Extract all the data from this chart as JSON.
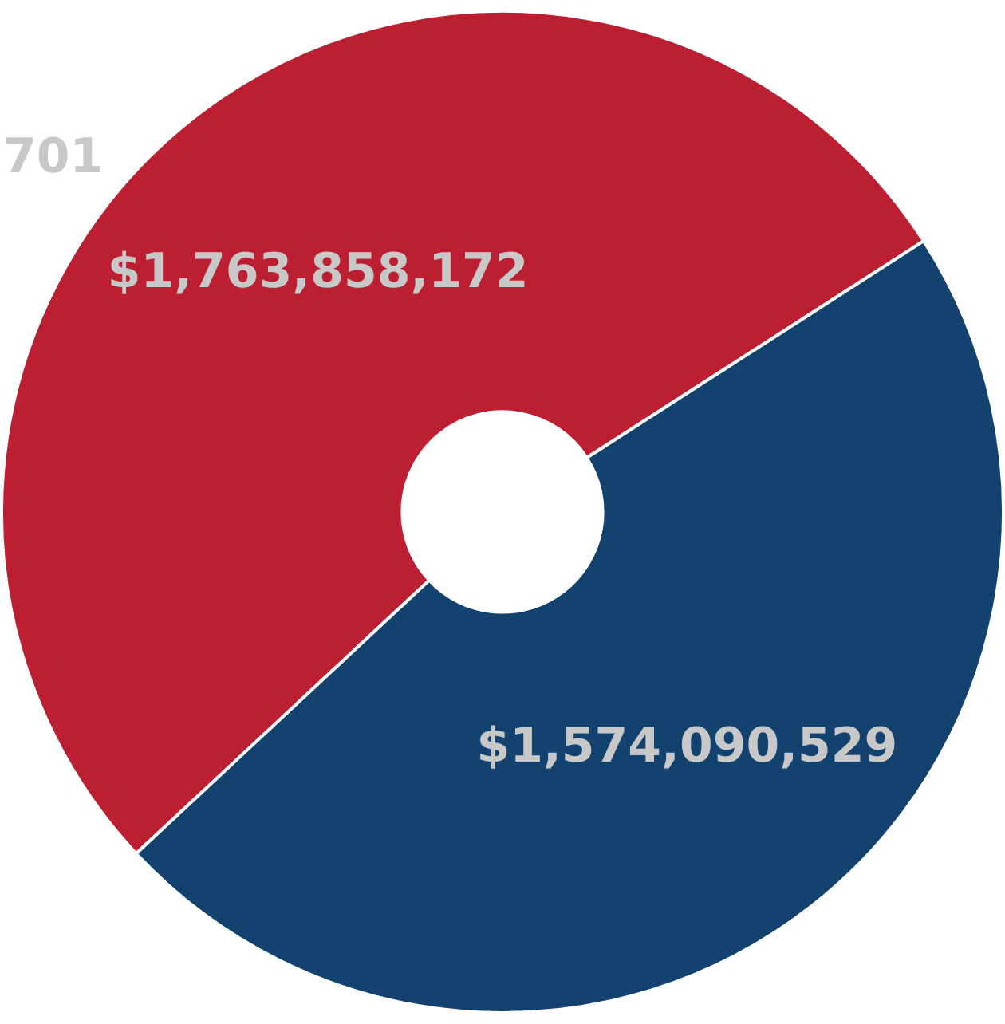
{
  "chart_data": {
    "type": "donut",
    "categories": [
      null,
      null
    ],
    "values": [
      1763858172,
      1574090529
    ],
    "colors": [
      "#bb1f31",
      "#13426f"
    ],
    "value_labels": [
      "$1,763,858,172",
      "$1,574,090,529"
    ],
    "annotations": [
      "701"
    ],
    "legend": false
  }
}
